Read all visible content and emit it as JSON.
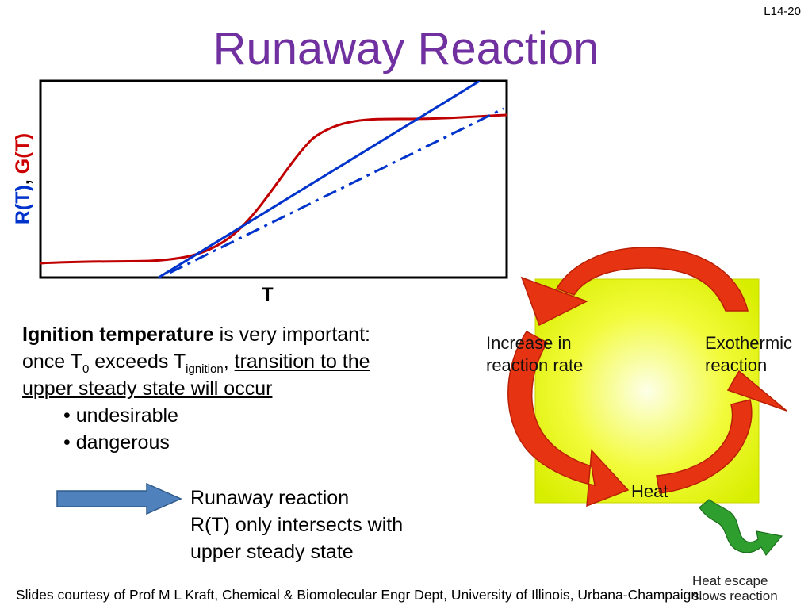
{
  "slide_number": "L14-20",
  "title": "Runaway Reaction",
  "graph": {
    "y_label": {
      "r": "R(T)",
      "separator": ",",
      "g": "G(T)"
    },
    "x_label": "T",
    "colors": {
      "g_curve": "#c00000",
      "r_line": "#0033cc",
      "r_dashed": "#0033cc"
    }
  },
  "text": {
    "ignition_bold": "Ignition temperature",
    "ignition_rest": " is very important:",
    "once_prefix": "once T",
    "once_sub1": "0",
    "once_mid": " exceeds T",
    "once_sub2": "ignition",
    "once_comma": ", ",
    "transition_1": "transition to the",
    "transition_2": "upper steady state will occur",
    "bullets": [
      "• undesirable",
      "• dangerous"
    ]
  },
  "runaway": {
    "line1": "Runaway reaction",
    "line2": "R(T) only intersects with",
    "line3": "upper steady state"
  },
  "cycle": {
    "increase_1": "Increase in",
    "increase_2": "reaction rate",
    "exo_1": "Exothermic",
    "exo_2": "reaction",
    "heat": "Heat",
    "escape_1": "Heat escape",
    "escape_2": "slows reaction"
  },
  "footer": "Slides courtesy of Prof M L Kraft, Chemical & Biomolecular Engr Dept, University of Illinois, Urbana-Champaign."
}
